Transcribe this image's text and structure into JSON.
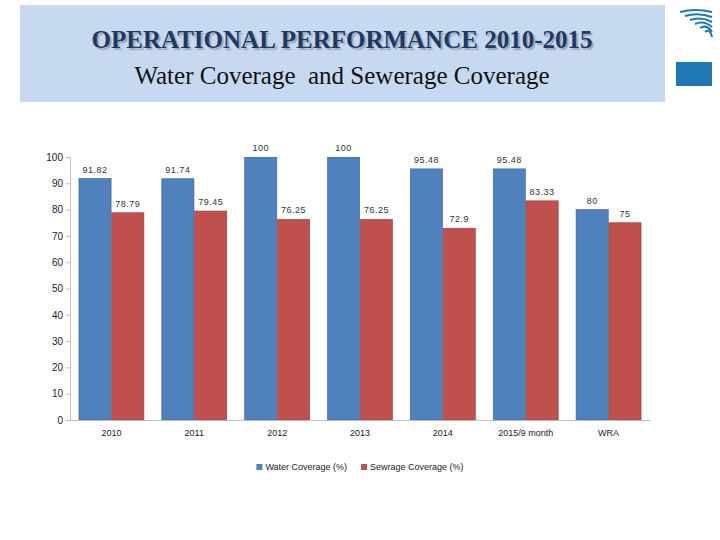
{
  "chart_data": {
    "type": "bar",
    "title": "OPERATIONAL PERFORMANCE 2010-2015",
    "subtitle": "Water Coverage  and Sewerage Coverage",
    "categories": [
      "2010",
      "2011",
      "2012",
      "2013",
      "2014",
      "2015/9 month",
      "WRA"
    ],
    "series": [
      {
        "name": "Water Coverage (%)",
        "color": "#4f81bd",
        "values": [
          91.82,
          91.74,
          100,
          100,
          95.48,
          95.48,
          80
        ]
      },
      {
        "name": "Sewrage Coverage (%)",
        "color": "#c0504d",
        "values": [
          78.79,
          79.45,
          76.25,
          76.25,
          72.9,
          83.33,
          75
        ]
      }
    ],
    "ylim": [
      0,
      100
    ],
    "yticks": [
      0,
      10,
      20,
      30,
      40,
      50,
      60,
      70,
      80,
      90,
      100
    ],
    "grid": false,
    "legend": "bottom",
    "data_labels": true
  }
}
